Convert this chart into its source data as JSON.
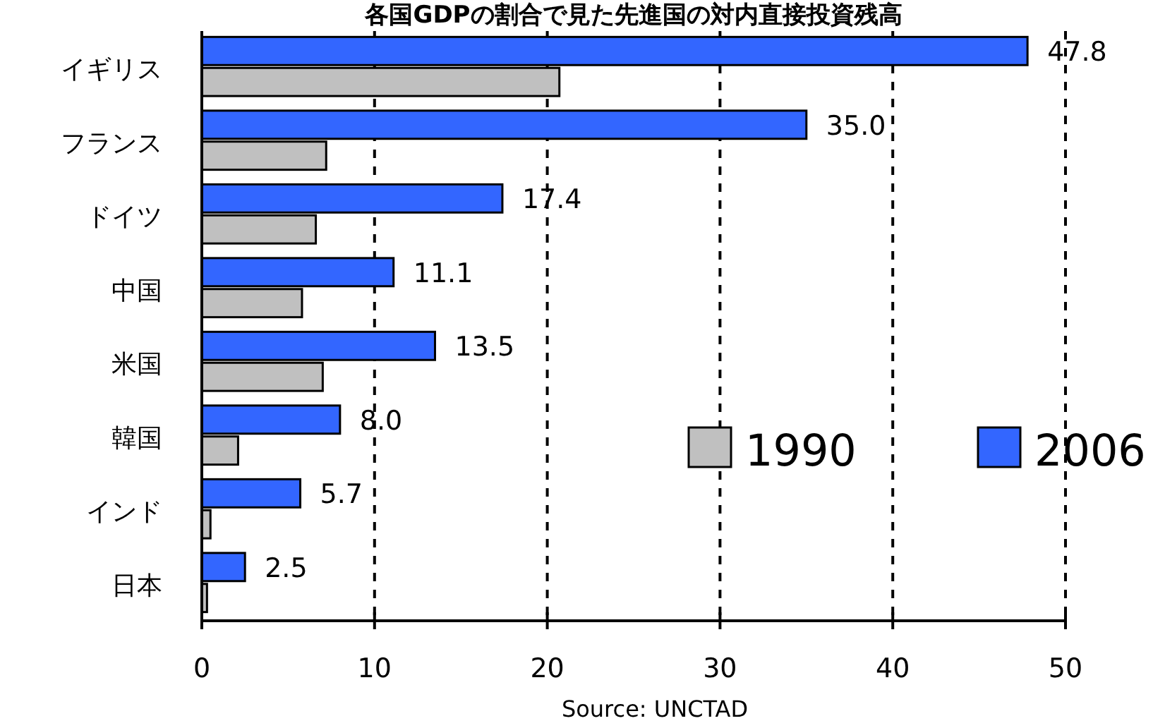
{
  "chart_data": {
    "type": "bar",
    "orientation": "horizontal",
    "title": "各国GDPの割合で見た先進国の対内直接投資残高",
    "categories": [
      "イギリス",
      "フランス",
      "ドイツ",
      "中国",
      "米国",
      "韓国",
      "インド",
      "日本"
    ],
    "series": [
      {
        "name": "2006",
        "color": "#3366ff",
        "values": [
          47.8,
          35.0,
          17.4,
          11.1,
          13.5,
          8.0,
          5.7,
          2.5
        ],
        "value_labels": [
          "47.8",
          "35.0",
          "17.4",
          "11.1",
          "13.5",
          "8.0",
          "5.7",
          "2.5"
        ]
      },
      {
        "name": "1990",
        "color": "#c0c0c0",
        "values": [
          20.7,
          7.2,
          6.6,
          5.8,
          7.0,
          2.1,
          0.5,
          0.3
        ]
      }
    ],
    "xlim": [
      0,
      50
    ],
    "xticks": [
      0,
      10,
      20,
      30,
      40,
      50
    ],
    "grid": "x",
    "legend": "right",
    "annotations": [
      "Source: UNCTAD"
    ]
  }
}
